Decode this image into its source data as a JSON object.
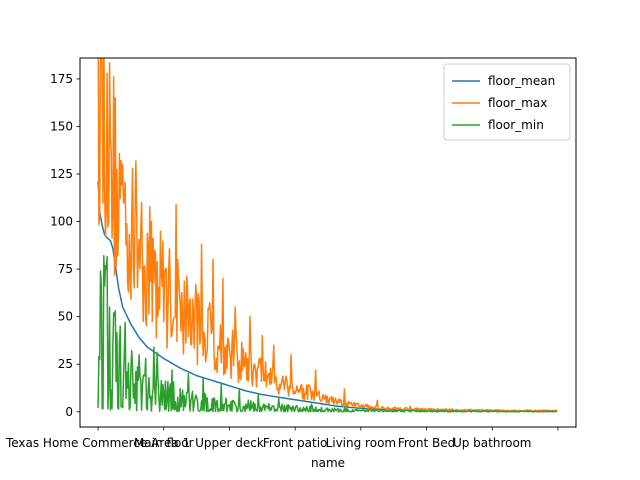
{
  "chart_data": {
    "type": "line",
    "xlabel": "name",
    "ylabel": "",
    "title": "",
    "ylim": [
      -8,
      186
    ],
    "xlim": [
      -22,
      582
    ],
    "yticks": [
      0,
      25,
      50,
      75,
      100,
      125,
      150,
      175
    ],
    "xticks": [
      {
        "pos": 0,
        "label": "Texas Home Commerce Area 1"
      },
      {
        "pos": 80,
        "label": "Main floor"
      },
      {
        "pos": 160,
        "label": "Upper deck"
      },
      {
        "pos": 240,
        "label": "Front patio"
      },
      {
        "pos": 320,
        "label": "Living room"
      },
      {
        "pos": 400,
        "label": "Front Bed"
      },
      {
        "pos": 480,
        "label": "Up bathroom"
      },
      {
        "pos": 560,
        "label": ""
      }
    ],
    "legend_position": "top-right",
    "grid": false,
    "series": [
      {
        "name": "floor_mean",
        "color": "#1f77b4",
        "knots": [
          [
            0,
            121
          ],
          [
            2,
            105
          ],
          [
            5,
            98
          ],
          [
            8,
            93
          ],
          [
            12,
            91
          ],
          [
            15,
            90
          ],
          [
            18,
            86
          ],
          [
            20,
            80
          ],
          [
            25,
            65
          ],
          [
            30,
            55
          ],
          [
            40,
            46
          ],
          [
            50,
            39
          ],
          [
            60,
            34
          ],
          [
            70,
            31
          ],
          [
            80,
            28
          ],
          [
            100,
            23
          ],
          [
            120,
            19
          ],
          [
            150,
            15
          ],
          [
            180,
            11
          ],
          [
            200,
            9
          ],
          [
            230,
            7
          ],
          [
            260,
            5
          ],
          [
            290,
            3
          ],
          [
            320,
            1.8
          ],
          [
            360,
            1
          ],
          [
            400,
            0.6
          ],
          [
            450,
            0.4
          ],
          [
            500,
            0.3
          ],
          [
            559,
            0.2
          ]
        ]
      },
      {
        "name": "floor_max",
        "color": "#ff7f0e",
        "knots": [
          [
            0,
            165
          ],
          [
            3,
            176
          ],
          [
            5,
            140
          ],
          [
            8,
            168
          ],
          [
            12,
            130
          ],
          [
            20,
            120
          ],
          [
            30,
            105
          ],
          [
            40,
            95
          ],
          [
            50,
            85
          ],
          [
            60,
            75
          ],
          [
            70,
            68
          ],
          [
            80,
            62
          ],
          [
            100,
            55
          ],
          [
            120,
            45
          ],
          [
            140,
            38
          ],
          [
            160,
            30
          ],
          [
            180,
            24
          ],
          [
            200,
            20
          ],
          [
            220,
            16
          ],
          [
            240,
            12
          ],
          [
            260,
            9
          ],
          [
            280,
            6
          ],
          [
            300,
            4
          ],
          [
            320,
            3
          ],
          [
            340,
            2
          ],
          [
            360,
            1.8
          ],
          [
            400,
            1.2
          ],
          [
            450,
            0.9
          ],
          [
            500,
            0.7
          ],
          [
            559,
            0.5
          ]
        ],
        "spikes": [
          [
            11,
            178
          ],
          [
            5,
            175
          ],
          [
            16,
            137
          ],
          [
            28,
            132
          ],
          [
            42,
            128
          ],
          [
            53,
            110
          ],
          [
            65,
            100
          ],
          [
            76,
            95
          ],
          [
            95,
            109
          ],
          [
            126,
            88
          ],
          [
            140,
            80
          ],
          [
            152,
            70
          ],
          [
            167,
            55
          ],
          [
            185,
            50
          ],
          [
            200,
            40
          ],
          [
            214,
            35
          ],
          [
            235,
            30
          ],
          [
            265,
            22
          ],
          [
            300,
            12
          ],
          [
            340,
            6
          ],
          [
            380,
            3
          ]
        ]
      },
      {
        "name": "floor_min",
        "color": "#2ca02c",
        "knots": [
          [
            0,
            50
          ],
          [
            5,
            55
          ],
          [
            10,
            45
          ],
          [
            15,
            40
          ],
          [
            20,
            30
          ],
          [
            25,
            22
          ],
          [
            30,
            18
          ],
          [
            40,
            14
          ],
          [
            50,
            12
          ],
          [
            60,
            11
          ],
          [
            80,
            9
          ],
          [
            100,
            8
          ],
          [
            120,
            6
          ],
          [
            140,
            5
          ],
          [
            160,
            4
          ],
          [
            180,
            3.5
          ],
          [
            200,
            2.5
          ],
          [
            230,
            2
          ],
          [
            260,
            1.5
          ],
          [
            300,
            1
          ],
          [
            350,
            0.6
          ],
          [
            400,
            0.4
          ],
          [
            450,
            0.3
          ],
          [
            559,
            0.2
          ]
        ],
        "spikes": [
          [
            3,
            74
          ],
          [
            7,
            82
          ],
          [
            10,
            75
          ],
          [
            14,
            55
          ],
          [
            19,
            52
          ],
          [
            27,
            45
          ],
          [
            33,
            47
          ],
          [
            41,
            32
          ],
          [
            50,
            30
          ],
          [
            58,
            28
          ],
          [
            68,
            34
          ],
          [
            72,
            31
          ],
          [
            90,
            22
          ],
          [
            110,
            20
          ],
          [
            128,
            18
          ],
          [
            150,
            15
          ],
          [
            172,
            12
          ],
          [
            195,
            9
          ],
          [
            220,
            7
          ],
          [
            260,
            4
          ]
        ]
      }
    ]
  }
}
